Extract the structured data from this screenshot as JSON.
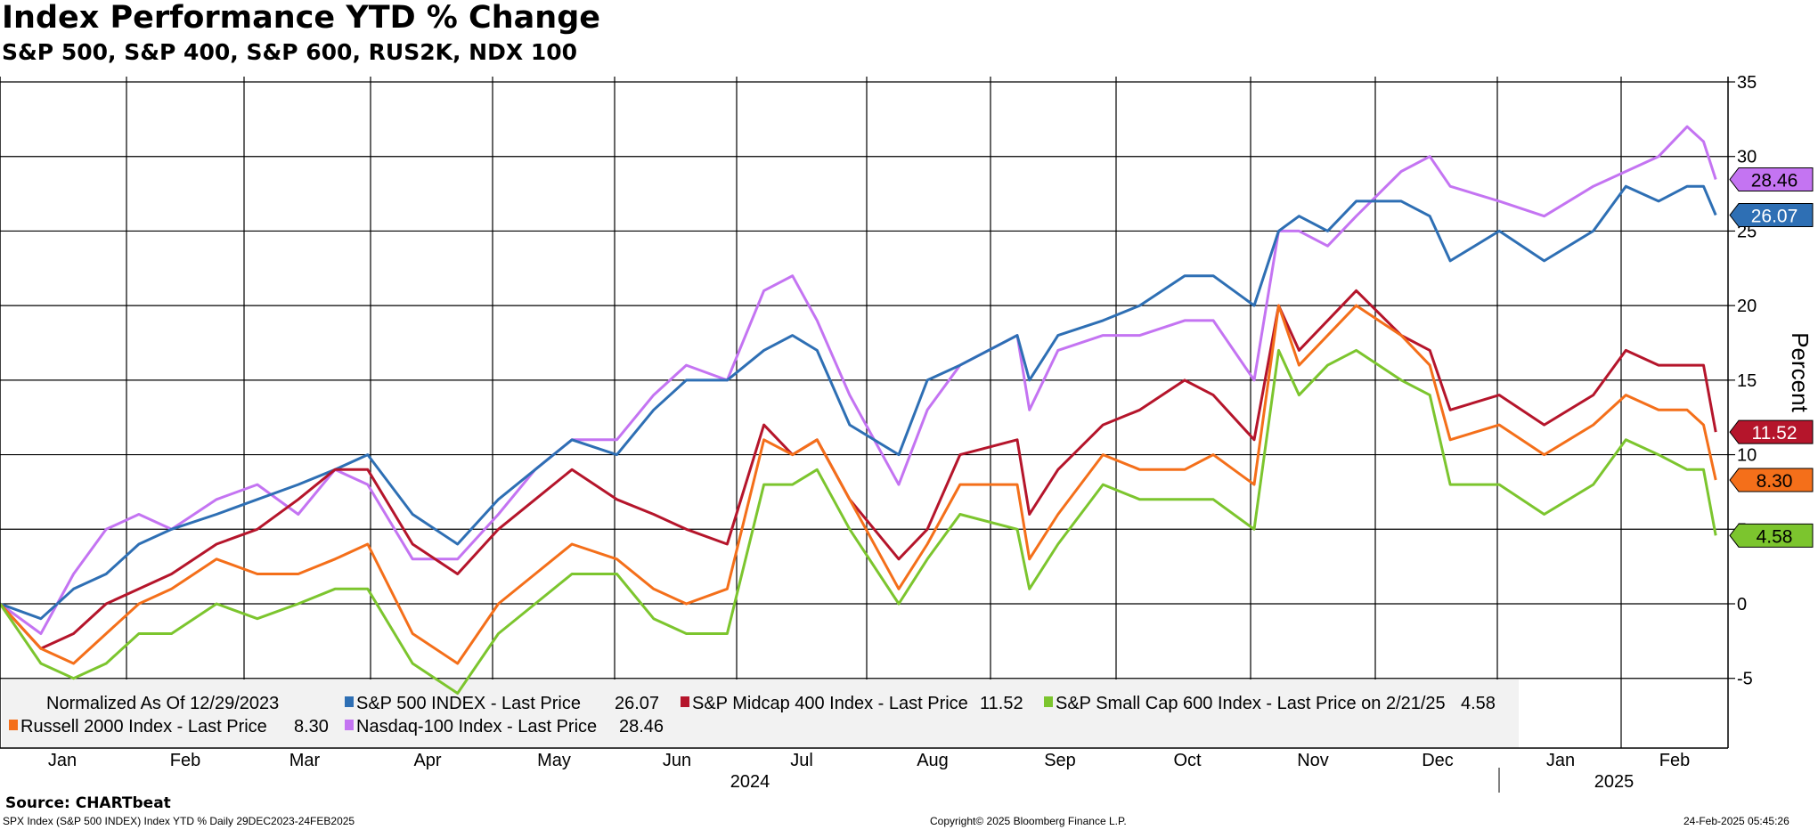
{
  "title": "Index Performance YTD % Change",
  "subtitle": "S&P 500, S&P 400, S&P 600, RUS2K, NDX 100",
  "ylabel": "Percent",
  "source": "Source: CHARTbeat",
  "footer": {
    "left": "SPX Index (S&P 500 INDEX) Index YTD %  Daily 29DEC2023-24FEB2025",
    "center": "Copyright© 2025 Bloomberg Finance L.P.",
    "right": "24-Feb-2025 05:45:26"
  },
  "legend": {
    "normalized": "Normalized As Of 12/29/2023",
    "entries": [
      {
        "key": "spx",
        "label": "S&P 500 INDEX - Last Price",
        "value": "26.07"
      },
      {
        "key": "mid",
        "label": "S&P Midcap 400 Index - Last Price",
        "value": "11.52"
      },
      {
        "key": "small",
        "label": "S&P Small Cap 600 Index - Last Price on 2/21/25",
        "value": "4.58"
      },
      {
        "key": "rus",
        "label": "Russell 2000 Index - Last Price",
        "value": "8.30"
      },
      {
        "key": "ndx",
        "label": "Nasdaq-100 Index - Last Price",
        "value": "28.46"
      }
    ]
  },
  "chart_data": {
    "type": "line",
    "ylim": [
      -10,
      35
    ],
    "yticks": [
      -5,
      0,
      5,
      10,
      15,
      20,
      25,
      30,
      35
    ],
    "grid": true,
    "legend_placement": "bottom-left",
    "x_months": [
      "Jan",
      "Feb",
      "Mar",
      "Apr",
      "May",
      "Jun",
      "Jul",
      "Aug",
      "Sep",
      "Oct",
      "Nov",
      "Dec",
      "Jan",
      "Feb"
    ],
    "x_years": [
      "2024",
      "2025"
    ],
    "x_dates": [
      "2023-12-29",
      "2024-01-08",
      "2024-01-16",
      "2024-01-24",
      "2024-02-01",
      "2024-02-09",
      "2024-02-20",
      "2024-03-01",
      "2024-03-11",
      "2024-03-20",
      "2024-03-28",
      "2024-04-08",
      "2024-04-19",
      "2024-04-29",
      "2024-05-08",
      "2024-05-17",
      "2024-05-28",
      "2024-06-06",
      "2024-06-14",
      "2024-06-24",
      "2024-07-03",
      "2024-07-10",
      "2024-07-16",
      "2024-07-24",
      "2024-08-05",
      "2024-08-12",
      "2024-08-20",
      "2024-09-03",
      "2024-09-06",
      "2024-09-13",
      "2024-09-24",
      "2024-10-03",
      "2024-10-14",
      "2024-10-21",
      "2024-10-31",
      "2024-11-06",
      "2024-11-11",
      "2024-11-18",
      "2024-11-25",
      "2024-12-06",
      "2024-12-13",
      "2024-12-18",
      "2024-12-30",
      "2025-01-10",
      "2025-01-22",
      "2025-01-30",
      "2025-02-07",
      "2025-02-14",
      "2025-02-18",
      "2025-02-21"
    ],
    "series": [
      {
        "key": "ndx",
        "name": "Nasdaq-100 Index",
        "color": "#c474f2",
        "last": "28.46",
        "values": [
          0,
          -2,
          2,
          5,
          6,
          5,
          7,
          8,
          6,
          9,
          8,
          3,
          3,
          6,
          9,
          11,
          11,
          14,
          16,
          15,
          21,
          22,
          19,
          14,
          8,
          13,
          16,
          18,
          13,
          17,
          18,
          18,
          19,
          19,
          15,
          25,
          25,
          24,
          26,
          29,
          30,
          28,
          27,
          26,
          28,
          29,
          30,
          32,
          31,
          28.46
        ]
      },
      {
        "key": "spx",
        "name": "S&P 500 INDEX",
        "color": "#2e6fb4",
        "last": "26.07",
        "values": [
          0,
          -1,
          1,
          2,
          4,
          5,
          6,
          7,
          8,
          9,
          10,
          6,
          4,
          7,
          9,
          11,
          10,
          13,
          15,
          15,
          17,
          18,
          17,
          12,
          10,
          15,
          16,
          18,
          15,
          18,
          19,
          20,
          22,
          22,
          20,
          25,
          26,
          25,
          27,
          27,
          26,
          23,
          25,
          23,
          25,
          28,
          27,
          28,
          28,
          26.07
        ]
      },
      {
        "key": "mid",
        "name": "S&P Midcap 400 Index",
        "color": "#b5152b",
        "last": "11.52",
        "values": [
          0,
          -3,
          -2,
          0,
          1,
          2,
          4,
          5,
          7,
          9,
          9,
          4,
          2,
          5,
          7,
          9,
          7,
          6,
          5,
          4,
          12,
          10,
          11,
          7,
          3,
          5,
          10,
          11,
          6,
          9,
          12,
          13,
          15,
          14,
          11,
          20,
          17,
          19,
          21,
          18,
          17,
          13,
          14,
          12,
          14,
          17,
          16,
          16,
          16,
          11.52
        ]
      },
      {
        "key": "rus",
        "name": "Russell 2000 Index",
        "color": "#f46f1a",
        "last": "8.30",
        "values": [
          0,
          -3,
          -4,
          -2,
          0,
          1,
          3,
          2,
          2,
          3,
          4,
          -2,
          -4,
          0,
          2,
          4,
          3,
          1,
          0,
          1,
          11,
          10,
          11,
          7,
          1,
          4,
          8,
          8,
          3,
          6,
          10,
          9,
          9,
          10,
          8,
          20,
          16,
          18,
          20,
          18,
          16,
          11,
          12,
          10,
          12,
          14,
          13,
          13,
          12,
          8.3
        ]
      },
      {
        "key": "small",
        "name": "S&P Small Cap 600 Index",
        "color": "#7cc52e",
        "last": "4.58",
        "values": [
          0,
          -4,
          -5,
          -4,
          -2,
          -2,
          0,
          -1,
          0,
          1,
          1,
          -4,
          -6,
          -2,
          0,
          2,
          2,
          -1,
          -2,
          -2,
          8,
          8,
          9,
          5,
          0,
          3,
          6,
          5,
          1,
          4,
          8,
          7,
          7,
          7,
          5,
          17,
          14,
          16,
          17,
          15,
          14,
          8,
          8,
          6,
          8,
          11,
          10,
          9,
          9,
          4.58
        ]
      }
    ]
  }
}
